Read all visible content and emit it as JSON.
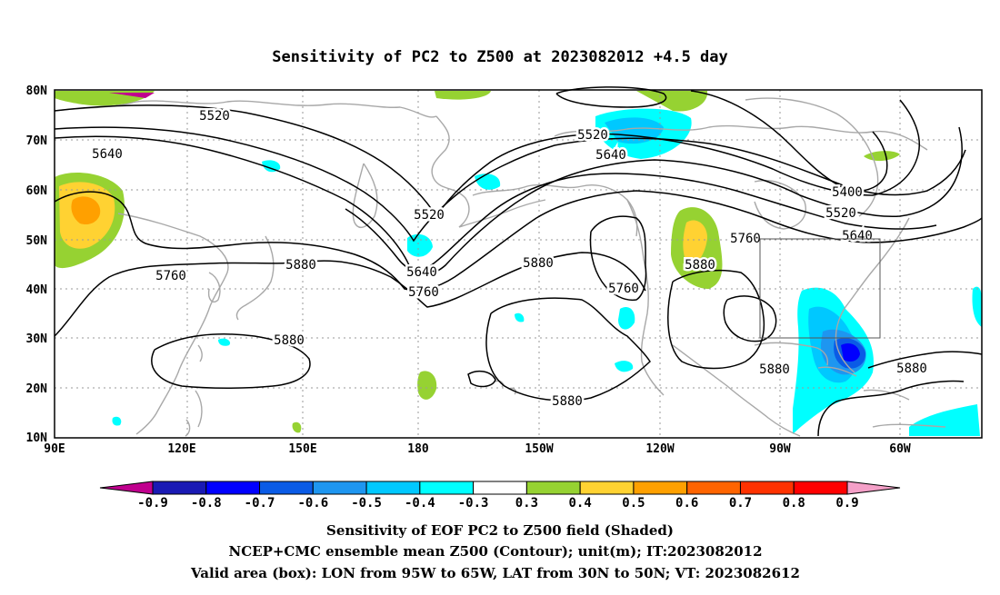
{
  "title": "Sensitivity of PC2 to Z500 at 2023082012 +4.5 day",
  "lat_labels": [
    "80N",
    "70N",
    "60N",
    "50N",
    "40N",
    "30N",
    "20N",
    "10N"
  ],
  "lon_labels": [
    "90E",
    "120E",
    "150E",
    "180",
    "150W",
    "120W",
    "90W",
    "60W"
  ],
  "contour_labels": [
    {
      "text": "5520"
    },
    {
      "text": "5640"
    },
    {
      "text": "5520"
    },
    {
      "text": "5520"
    },
    {
      "text": "5640"
    },
    {
      "text": "5400"
    },
    {
      "text": "5520"
    },
    {
      "text": "5640"
    },
    {
      "text": "5760"
    },
    {
      "text": "5880"
    },
    {
      "text": "5760"
    },
    {
      "text": "5880"
    },
    {
      "text": "5640"
    },
    {
      "text": "5760"
    },
    {
      "text": "5880"
    },
    {
      "text": "5760"
    },
    {
      "text": "5880"
    },
    {
      "text": "5880"
    },
    {
      "text": "5880"
    },
    {
      "text": "5880"
    }
  ],
  "colorbar": {
    "labels": [
      "-0.9",
      "-0.8",
      "-0.7",
      "-0.6",
      "-0.5",
      "-0.4",
      "-0.3",
      "0.3",
      "0.4",
      "0.5",
      "0.6",
      "0.7",
      "0.8",
      "0.9"
    ],
    "colors": [
      "#c0008e",
      "#1a1ab4",
      "#0000ff",
      "#0a5be6",
      "#1e96f0",
      "#00c8ff",
      "#00ffff",
      "#ffffff",
      "#96d232",
      "#ffd232",
      "#ffa000",
      "#ff6400",
      "#ff3200",
      "#ff0000",
      "#f5a0c8"
    ]
  },
  "caption": {
    "line1": "Sensitivity of EOF PC2 to Z500 field (Shaded)",
    "line2": "NCEP+CMC ensemble mean Z500 (Contour); unit(m); IT:2023082012",
    "line3": "Valid area (box): LON from 95W to 65W, LAT from 30N to 50N; VT: 2023082612"
  },
  "valid_box": {
    "lon_min": -95,
    "lon_max": -65,
    "lat_min": 30,
    "lat_max": 50
  }
}
